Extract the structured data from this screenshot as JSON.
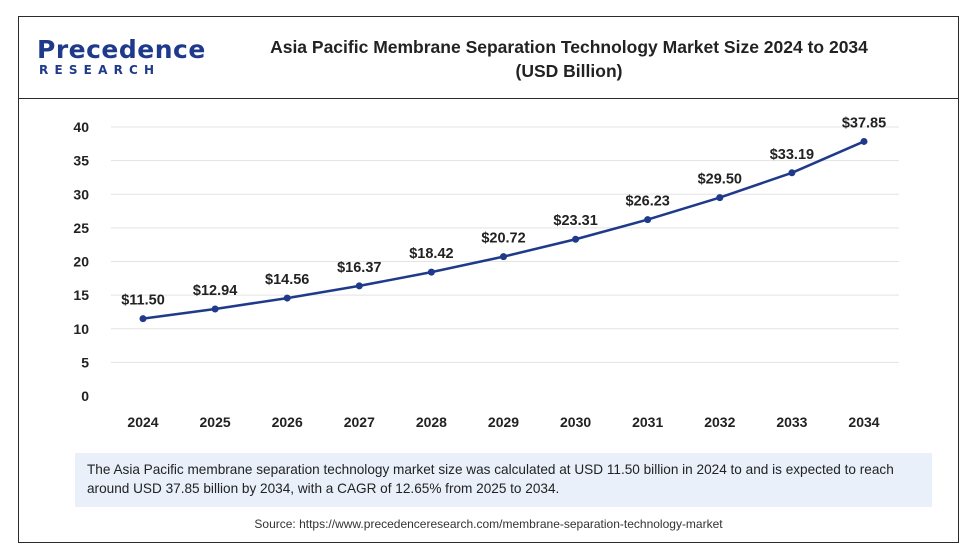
{
  "brand": {
    "name_main": "Precedence",
    "name_sub": "RESEARCH",
    "color": "#1f3a8a"
  },
  "title_line1": "Asia Pacific Membrane Separation Technology Market Size 2024 to 2034",
  "title_line2": "(USD Billion)",
  "description": "The Asia Pacific membrane separation technology market size was calculated at USD 11.50 billion in 2024 to and is expected to reach around USD 37.85 billion by 2034, with a CAGR of 12.65% from 2025 to 2034.",
  "source": "Source: https://www.precedenceresearch.com/membrane-separation-technology-market",
  "chart_data": {
    "type": "line",
    "title": "Asia Pacific Membrane Separation Technology Market Size 2024 to 2034 (USD Billion)",
    "xlabel": "",
    "ylabel": "",
    "categories": [
      "2024",
      "2025",
      "2026",
      "2027",
      "2028",
      "2029",
      "2030",
      "2031",
      "2032",
      "2033",
      "2034"
    ],
    "series": [
      {
        "values": [
          11.5,
          12.94,
          14.56,
          16.37,
          18.42,
          20.72,
          23.31,
          26.23,
          29.5,
          33.19,
          37.85
        ],
        "color": "#1f3a8a"
      }
    ],
    "data_labels": [
      "$11.50",
      "$12.94",
      "$14.56",
      "$16.37",
      "$18.42",
      "$20.72",
      "$23.31",
      "$26.23",
      "$29.50",
      "$33.19",
      "$37.85"
    ],
    "yticks": [
      0,
      5,
      10,
      15,
      20,
      25,
      30,
      35,
      40
    ],
    "ylim": [
      0,
      40
    ],
    "grid": true,
    "legend": "none"
  }
}
